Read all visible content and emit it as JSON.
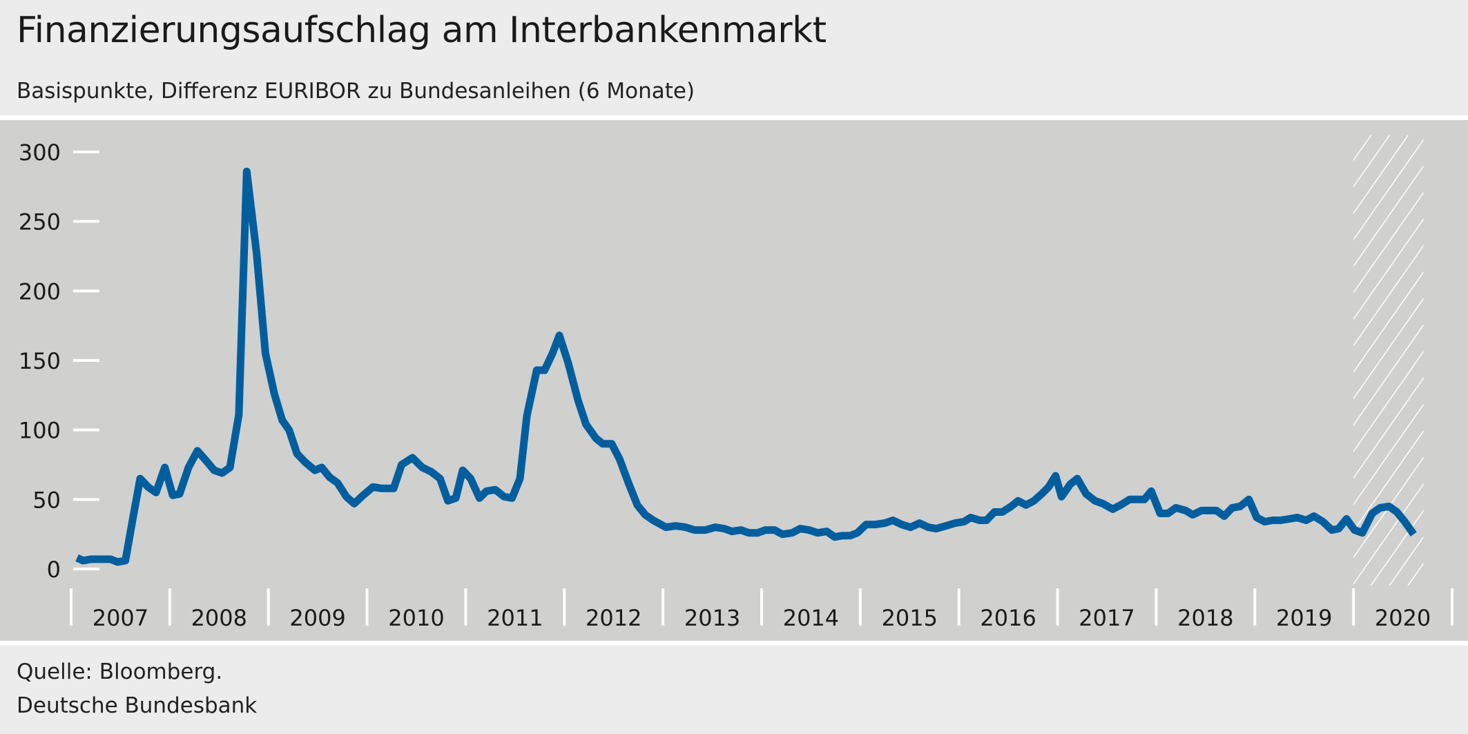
{
  "header": {
    "title": "Finanzierungsaufschlag am Interbankenmarkt",
    "subtitle": "Basispunkte, Differenz EURIBOR zu Bundesanleihen (6 Monate)"
  },
  "footer": {
    "source": "Quelle: Bloomberg.",
    "publisher": "Deutsche Bundesbank"
  },
  "chart_data": {
    "type": "line",
    "title": "Finanzierungsaufschlag am Interbankenmarkt",
    "subtitle": "Basispunkte, Differenz EURIBOR zu Bundesanleihen (6 Monate)",
    "xlabel": "",
    "ylabel": "",
    "xlim": [
      2007,
      2021
    ],
    "ylim": [
      0,
      300
    ],
    "yticks": [
      0,
      50,
      100,
      150,
      200,
      250,
      300
    ],
    "xtick_labels": [
      "2007",
      "2008",
      "2009",
      "2010",
      "2011",
      "2012",
      "2013",
      "2014",
      "2015",
      "2016",
      "2017",
      "2018",
      "2019",
      "2020"
    ],
    "grid": false,
    "line_color": "#005e9e",
    "hatched_range": [
      2020.0,
      2020.71
    ],
    "series": [
      {
        "points": [
          [
            2007.06,
            8
          ],
          [
            2007.12,
            6
          ],
          [
            2007.2,
            7
          ],
          [
            2007.4,
            7
          ],
          [
            2007.47,
            5
          ],
          [
            2007.55,
            6
          ],
          [
            2007.63,
            38
          ],
          [
            2007.7,
            65
          ],
          [
            2007.78,
            59
          ],
          [
            2007.86,
            55
          ],
          [
            2007.95,
            73
          ],
          [
            2008.03,
            53
          ],
          [
            2008.1,
            54
          ],
          [
            2008.19,
            73
          ],
          [
            2008.28,
            85
          ],
          [
            2008.38,
            77
          ],
          [
            2008.45,
            71
          ],
          [
            2008.53,
            69
          ],
          [
            2008.61,
            73
          ],
          [
            2008.7,
            111
          ],
          [
            2008.78,
            286
          ],
          [
            2008.88,
            227
          ],
          [
            2008.97,
            155
          ],
          [
            2009.06,
            126
          ],
          [
            2009.14,
            107
          ],
          [
            2009.21,
            100
          ],
          [
            2009.29,
            83
          ],
          [
            2009.37,
            77
          ],
          [
            2009.47,
            71
          ],
          [
            2009.54,
            73
          ],
          [
            2009.62,
            66
          ],
          [
            2009.7,
            62
          ],
          [
            2009.79,
            52
          ],
          [
            2009.87,
            47
          ],
          [
            2009.96,
            53
          ],
          [
            2010.06,
            59
          ],
          [
            2010.14,
            58
          ],
          [
            2010.27,
            58
          ],
          [
            2010.35,
            75
          ],
          [
            2010.46,
            80
          ],
          [
            2010.56,
            73
          ],
          [
            2010.65,
            70
          ],
          [
            2010.74,
            65
          ],
          [
            2010.82,
            49
          ],
          [
            2010.9,
            51
          ],
          [
            2010.97,
            71
          ],
          [
            2011.05,
            65
          ],
          [
            2011.14,
            51
          ],
          [
            2011.21,
            56
          ],
          [
            2011.3,
            57
          ],
          [
            2011.39,
            52
          ],
          [
            2011.47,
            51
          ],
          [
            2011.55,
            65
          ],
          [
            2011.62,
            110
          ],
          [
            2011.72,
            143
          ],
          [
            2011.8,
            143
          ],
          [
            2011.88,
            155
          ],
          [
            2011.95,
            168
          ],
          [
            2012.04,
            148
          ],
          [
            2012.14,
            121
          ],
          [
            2012.22,
            104
          ],
          [
            2012.32,
            94
          ],
          [
            2012.39,
            90
          ],
          [
            2012.48,
            90
          ],
          [
            2012.56,
            79
          ],
          [
            2012.65,
            62
          ],
          [
            2012.74,
            46
          ],
          [
            2012.82,
            39
          ],
          [
            2012.9,
            35
          ],
          [
            2013.03,
            30
          ],
          [
            2013.13,
            31
          ],
          [
            2013.23,
            30
          ],
          [
            2013.32,
            28
          ],
          [
            2013.43,
            28
          ],
          [
            2013.53,
            30
          ],
          [
            2013.62,
            29
          ],
          [
            2013.7,
            27
          ],
          [
            2013.79,
            28
          ],
          [
            2013.87,
            26
          ],
          [
            2013.96,
            26
          ],
          [
            2014.04,
            28
          ],
          [
            2014.13,
            28
          ],
          [
            2014.21,
            25
          ],
          [
            2014.31,
            26
          ],
          [
            2014.39,
            29
          ],
          [
            2014.48,
            28
          ],
          [
            2014.57,
            26
          ],
          [
            2014.66,
            27
          ],
          [
            2014.74,
            23
          ],
          [
            2014.82,
            24
          ],
          [
            2014.9,
            24
          ],
          [
            2014.97,
            26
          ],
          [
            2015.06,
            32
          ],
          [
            2015.15,
            32
          ],
          [
            2015.25,
            33
          ],
          [
            2015.33,
            35
          ],
          [
            2015.42,
            32
          ],
          [
            2015.51,
            30
          ],
          [
            2015.6,
            33
          ],
          [
            2015.69,
            30
          ],
          [
            2015.77,
            29
          ],
          [
            2015.87,
            31
          ],
          [
            2015.96,
            33
          ],
          [
            2016.05,
            34
          ],
          [
            2016.12,
            37
          ],
          [
            2016.21,
            35
          ],
          [
            2016.28,
            35
          ],
          [
            2016.36,
            41
          ],
          [
            2016.44,
            41
          ],
          [
            2016.53,
            45
          ],
          [
            2016.6,
            49
          ],
          [
            2016.68,
            46
          ],
          [
            2016.76,
            49
          ],
          [
            2016.84,
            54
          ],
          [
            2016.91,
            59
          ],
          [
            2016.98,
            67
          ],
          [
            2017.04,
            52
          ],
          [
            2017.13,
            61
          ],
          [
            2017.2,
            65
          ],
          [
            2017.29,
            54
          ],
          [
            2017.38,
            49
          ],
          [
            2017.46,
            47
          ],
          [
            2017.56,
            43
          ],
          [
            2017.64,
            46
          ],
          [
            2017.73,
            50
          ],
          [
            2017.8,
            50
          ],
          [
            2017.88,
            50
          ],
          [
            2017.95,
            56
          ],
          [
            2018.04,
            40
          ],
          [
            2018.12,
            40
          ],
          [
            2018.2,
            44
          ],
          [
            2018.3,
            42
          ],
          [
            2018.37,
            39
          ],
          [
            2018.46,
            42
          ],
          [
            2018.53,
            42
          ],
          [
            2018.61,
            42
          ],
          [
            2018.69,
            38
          ],
          [
            2018.77,
            44
          ],
          [
            2018.85,
            45
          ],
          [
            2018.94,
            50
          ],
          [
            2019.02,
            37
          ],
          [
            2019.1,
            34
          ],
          [
            2019.18,
            35
          ],
          [
            2019.26,
            35
          ],
          [
            2019.35,
            36
          ],
          [
            2019.43,
            37
          ],
          [
            2019.52,
            35
          ],
          [
            2019.6,
            38
          ],
          [
            2019.69,
            34
          ],
          [
            2019.78,
            28
          ],
          [
            2019.85,
            29
          ],
          [
            2019.93,
            36
          ],
          [
            2020.01,
            28
          ],
          [
            2020.09,
            26
          ],
          [
            2020.19,
            40
          ],
          [
            2020.27,
            44
          ],
          [
            2020.36,
            45
          ],
          [
            2020.44,
            41
          ],
          [
            2020.52,
            34
          ],
          [
            2020.61,
            25
          ]
        ]
      }
    ]
  }
}
